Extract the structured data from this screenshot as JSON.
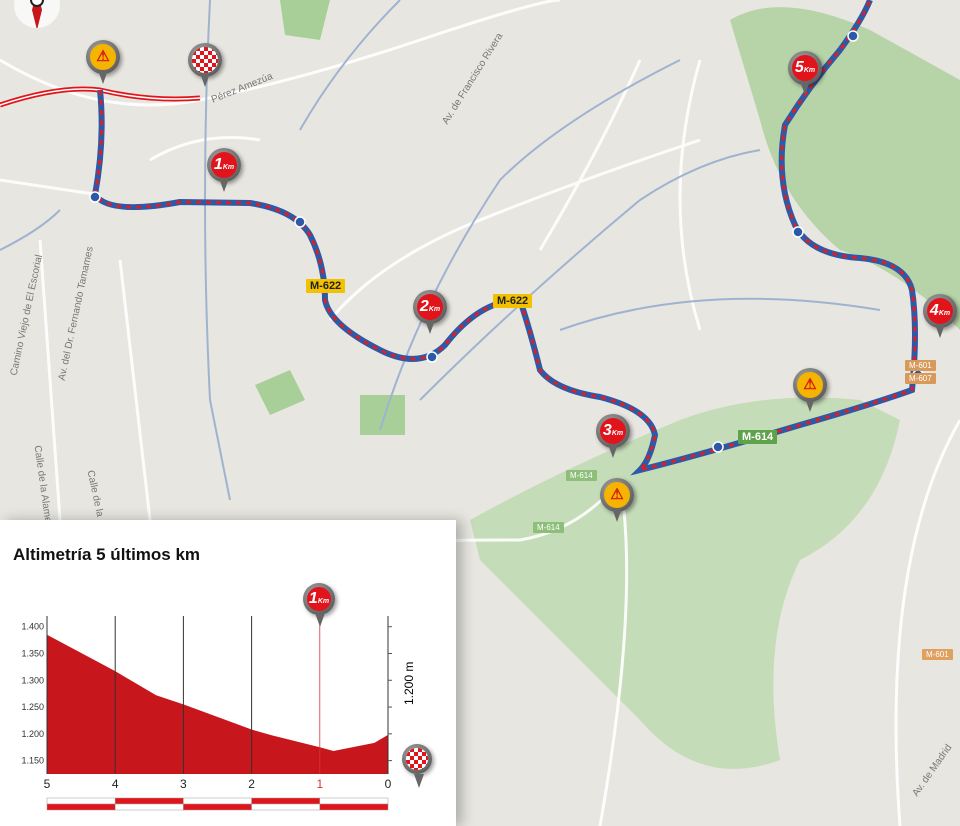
{
  "map": {
    "road_labels": [
      {
        "text": "M-622",
        "color": "#f2c200"
      },
      {
        "text": "M-622",
        "color": "#f2c200"
      },
      {
        "text": "M-614",
        "color": "#5ea24a"
      },
      {
        "text": "M-614",
        "color": "#8dbf7a"
      },
      {
        "text": "M-614",
        "color": "#8dbf7a"
      },
      {
        "text": "M-601",
        "color": "#e0a060"
      },
      {
        "text": "M-601",
        "color": "#e0a060"
      },
      {
        "text": "M-607",
        "color": "#e0a060"
      }
    ],
    "street_labels": [
      "Av. de Francisco Rivera",
      "Pérez Amezúa",
      "Camino Viejo de El Escorial",
      "Av. del Dr. Fernando Tamames",
      "Calle de la Alameda",
      "Calle de la",
      "Av. de Madrid"
    ],
    "markers": [
      {
        "type": "warning",
        "icon": "warning-icon"
      },
      {
        "type": "finish",
        "icon": "checkered-flag-icon"
      },
      {
        "type": "km",
        "meta": "META",
        "km": "1",
        "unit": "Km"
      },
      {
        "type": "km",
        "meta": "META",
        "km": "2",
        "unit": "Km"
      },
      {
        "type": "km",
        "meta": "META",
        "km": "3",
        "unit": "Km"
      },
      {
        "type": "km",
        "meta": "META",
        "km": "4",
        "unit": "Km"
      },
      {
        "type": "km",
        "meta": "META",
        "km": "5",
        "unit": "Km"
      },
      {
        "type": "warning",
        "icon": "warning-icon"
      },
      {
        "type": "warning",
        "icon": "warning-icon"
      }
    ],
    "route_colors": {
      "final_km": "#d8202a",
      "final_km_alt": "#2a5aa8",
      "after_finish": "#e2141b"
    }
  },
  "chart_data": {
    "type": "area",
    "title": "Altimetría 5 últimos km",
    "x": [
      5,
      4,
      3.4,
      3,
      2,
      1.7,
      1,
      0.8,
      0.2,
      0
    ],
    "y": [
      1385,
      1317,
      1272,
      1255,
      1208,
      1197,
      1175,
      1168,
      1183,
      1198
    ],
    "xlim": [
      5,
      0
    ],
    "ylim": [
      1125,
      1420
    ],
    "x_ticks": [
      "5",
      "4",
      "3",
      "2",
      "1",
      "0"
    ],
    "y_ticks": [
      "1.400",
      "1.350",
      "1.300",
      "1.250",
      "1.200",
      "1.150"
    ],
    "y_tick_values": [
      1400,
      1350,
      1300,
      1250,
      1200,
      1150
    ],
    "finish_altitude_label": "1.200 m",
    "marker_1km": {
      "meta": "META",
      "km": "1",
      "unit": "Km"
    },
    "fill_color": "#c8161d",
    "grid": true
  }
}
